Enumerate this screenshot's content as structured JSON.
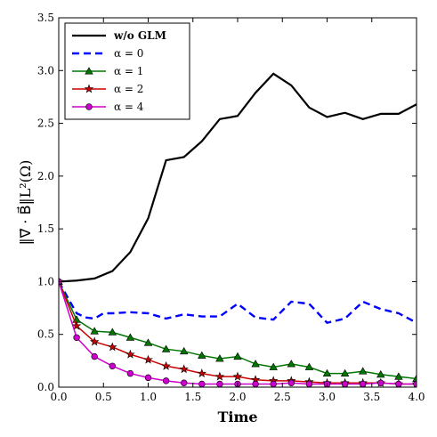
{
  "chart_data": {
    "type": "line",
    "xlabel": "Time",
    "ylabel": "‖∇⃗ · B⃗‖L²(Ω)",
    "xlim": [
      0.0,
      4.0
    ],
    "ylim": [
      0.0,
      3.5
    ],
    "xticks": [
      "0.0",
      "0.5",
      "1.0",
      "1.5",
      "2.0",
      "2.5",
      "3.0",
      "3.5",
      "4.0"
    ],
    "yticks": [
      "0.0",
      "0.5",
      "1.0",
      "1.5",
      "2.0",
      "2.5",
      "3.0",
      "3.5"
    ],
    "legend_position": "top-left",
    "grid": false,
    "series": [
      {
        "name": "w/o GLM",
        "color": "#000000",
        "style": "solid",
        "marker": "none",
        "x": [
          0.0,
          0.2,
          0.4,
          0.6,
          0.8,
          1.0,
          1.2,
          1.4,
          1.6,
          1.8,
          2.0,
          2.2,
          2.4,
          2.6,
          2.8,
          3.0,
          3.2,
          3.4,
          3.6,
          3.8,
          4.0
        ],
        "y": [
          1.0,
          1.01,
          1.03,
          1.1,
          1.28,
          1.6,
          2.15,
          2.18,
          2.33,
          2.54,
          2.57,
          2.79,
          2.97,
          2.86,
          2.65,
          2.56,
          2.6,
          2.54,
          2.59,
          2.59,
          2.68
        ]
      },
      {
        "name": "α = 0",
        "color": "#0000ff",
        "style": "dashed",
        "marker": "none",
        "x": [
          0.0,
          0.1,
          0.2,
          0.3,
          0.4,
          0.5,
          0.6,
          0.8,
          1.0,
          1.2,
          1.4,
          1.6,
          1.8,
          2.0,
          2.2,
          2.4,
          2.6,
          2.8,
          3.0,
          3.2,
          3.4,
          3.6,
          3.8,
          4.0
        ],
        "y": [
          1.0,
          0.85,
          0.7,
          0.66,
          0.65,
          0.7,
          0.7,
          0.71,
          0.7,
          0.65,
          0.69,
          0.67,
          0.67,
          0.79,
          0.66,
          0.64,
          0.81,
          0.79,
          0.61,
          0.65,
          0.81,
          0.74,
          0.7,
          0.61
        ]
      },
      {
        "name": "α = 1",
        "color": "#007700",
        "style": "solid",
        "marker": "triangle",
        "x": [
          0.0,
          0.2,
          0.4,
          0.6,
          0.8,
          1.0,
          1.2,
          1.4,
          1.6,
          1.8,
          2.0,
          2.2,
          2.4,
          2.6,
          2.8,
          3.0,
          3.2,
          3.4,
          3.6,
          3.8,
          4.0
        ],
        "y": [
          1.0,
          0.64,
          0.53,
          0.52,
          0.47,
          0.42,
          0.36,
          0.34,
          0.3,
          0.27,
          0.29,
          0.22,
          0.19,
          0.22,
          0.19,
          0.13,
          0.13,
          0.15,
          0.12,
          0.1,
          0.08
        ]
      },
      {
        "name": "α = 2",
        "color": "#cc0000",
        "style": "solid",
        "marker": "star",
        "x": [
          0.0,
          0.2,
          0.4,
          0.6,
          0.8,
          1.0,
          1.2,
          1.4,
          1.6,
          1.8,
          2.0,
          2.2,
          2.4,
          2.6,
          2.8,
          3.0,
          3.2,
          3.4,
          3.6,
          3.8,
          4.0
        ],
        "y": [
          1.0,
          0.58,
          0.43,
          0.38,
          0.31,
          0.26,
          0.2,
          0.17,
          0.13,
          0.1,
          0.1,
          0.07,
          0.06,
          0.06,
          0.05,
          0.04,
          0.04,
          0.04,
          0.04,
          0.03,
          0.03
        ]
      },
      {
        "name": "α = 4",
        "color": "#cc00cc",
        "style": "solid",
        "marker": "circle",
        "x": [
          0.0,
          0.2,
          0.4,
          0.6,
          0.8,
          1.0,
          1.2,
          1.4,
          1.6,
          1.8,
          2.0,
          2.2,
          2.4,
          2.6,
          2.8,
          3.0,
          3.2,
          3.4,
          3.6,
          3.8,
          4.0
        ],
        "y": [
          1.0,
          0.47,
          0.29,
          0.2,
          0.13,
          0.09,
          0.06,
          0.04,
          0.03,
          0.03,
          0.03,
          0.03,
          0.03,
          0.04,
          0.03,
          0.03,
          0.03,
          0.03,
          0.04,
          0.03,
          0.03
        ]
      }
    ]
  }
}
